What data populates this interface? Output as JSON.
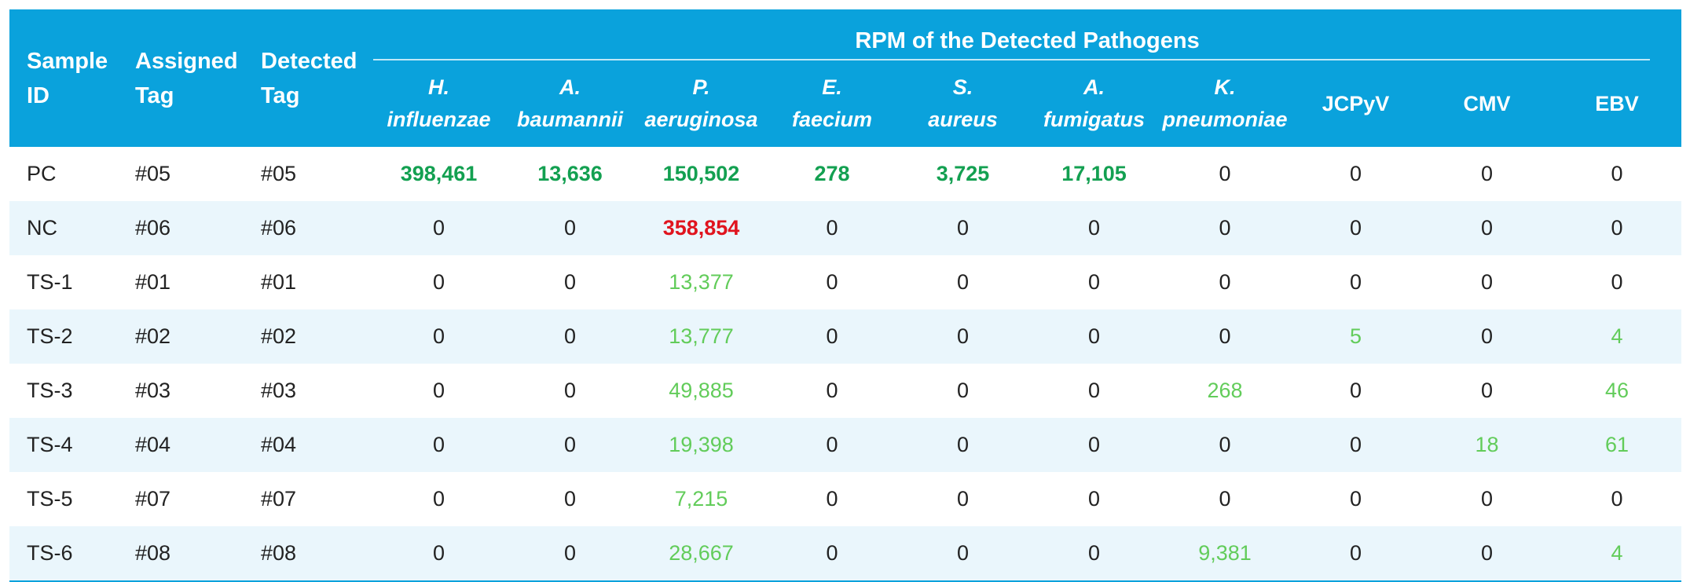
{
  "header": {
    "sample_id": "Sample ID",
    "assigned_tag": "Assigned Tag",
    "detected_tag": "Detected Tag",
    "group_title": "RPM of the Detected Pathogens",
    "pathogens": [
      {
        "line1": "H.",
        "line2": "influenzae",
        "italic": true
      },
      {
        "line1": "A.",
        "line2": "baumannii",
        "italic": true
      },
      {
        "line1": "P.",
        "line2": "aeruginosa",
        "italic": true
      },
      {
        "line1": "E.",
        "line2": "faecium",
        "italic": true
      },
      {
        "line1": "S.",
        "line2": "aureus",
        "italic": true
      },
      {
        "line1": "A.",
        "line2": "fumigatus",
        "italic": true
      },
      {
        "line1": "K.",
        "line2": "pneumoniae",
        "italic": true
      },
      {
        "line1": "JCPyV",
        "line2": "",
        "italic": false
      },
      {
        "line1": "CMV",
        "line2": "",
        "italic": false
      },
      {
        "line1": "EBV",
        "line2": "",
        "italic": false
      }
    ]
  },
  "colors": {
    "header_bg": "#0aa2dc",
    "alt_row_bg": "#eaf6fc",
    "positive_control": "#13a051",
    "negative_alert": "#e0141e",
    "detected": "#62cc5a"
  },
  "rows": [
    {
      "id": "PC",
      "assigned": "#05",
      "detected": "#05",
      "values": [
        {
          "v": "398,461",
          "s": "pos-strong"
        },
        {
          "v": "13,636",
          "s": "pos-strong"
        },
        {
          "v": "150,502",
          "s": "pos-strong"
        },
        {
          "v": "278",
          "s": "pos-strong"
        },
        {
          "v": "3,725",
          "s": "pos-strong"
        },
        {
          "v": "17,105",
          "s": "pos-strong"
        },
        {
          "v": "0",
          "s": ""
        },
        {
          "v": "0",
          "s": ""
        },
        {
          "v": "0",
          "s": ""
        },
        {
          "v": "0",
          "s": ""
        }
      ]
    },
    {
      "id": "NC",
      "assigned": "#06",
      "detected": "#06",
      "values": [
        {
          "v": "0",
          "s": ""
        },
        {
          "v": "0",
          "s": ""
        },
        {
          "v": "358,854",
          "s": "neg-alert"
        },
        {
          "v": "0",
          "s": ""
        },
        {
          "v": "0",
          "s": ""
        },
        {
          "v": "0",
          "s": ""
        },
        {
          "v": "0",
          "s": ""
        },
        {
          "v": "0",
          "s": ""
        },
        {
          "v": "0",
          "s": ""
        },
        {
          "v": "0",
          "s": ""
        }
      ]
    },
    {
      "id": "TS-1",
      "assigned": "#01",
      "detected": "#01",
      "values": [
        {
          "v": "0",
          "s": ""
        },
        {
          "v": "0",
          "s": ""
        },
        {
          "v": "13,377",
          "s": "pos-light"
        },
        {
          "v": "0",
          "s": ""
        },
        {
          "v": "0",
          "s": ""
        },
        {
          "v": "0",
          "s": ""
        },
        {
          "v": "0",
          "s": ""
        },
        {
          "v": "0",
          "s": ""
        },
        {
          "v": "0",
          "s": ""
        },
        {
          "v": "0",
          "s": ""
        }
      ]
    },
    {
      "id": "TS-2",
      "assigned": "#02",
      "detected": "#02",
      "values": [
        {
          "v": "0",
          "s": ""
        },
        {
          "v": "0",
          "s": ""
        },
        {
          "v": "13,777",
          "s": "pos-light"
        },
        {
          "v": "0",
          "s": ""
        },
        {
          "v": "0",
          "s": ""
        },
        {
          "v": "0",
          "s": ""
        },
        {
          "v": "0",
          "s": ""
        },
        {
          "v": "5",
          "s": "pos-light"
        },
        {
          "v": "0",
          "s": ""
        },
        {
          "v": "4",
          "s": "pos-light"
        }
      ]
    },
    {
      "id": "TS-3",
      "assigned": "#03",
      "detected": "#03",
      "values": [
        {
          "v": "0",
          "s": ""
        },
        {
          "v": "0",
          "s": ""
        },
        {
          "v": "49,885",
          "s": "pos-light"
        },
        {
          "v": "0",
          "s": ""
        },
        {
          "v": "0",
          "s": ""
        },
        {
          "v": "0",
          "s": ""
        },
        {
          "v": "268",
          "s": "pos-light"
        },
        {
          "v": "0",
          "s": ""
        },
        {
          "v": "0",
          "s": ""
        },
        {
          "v": "46",
          "s": "pos-light"
        }
      ]
    },
    {
      "id": "TS-4",
      "assigned": "#04",
      "detected": "#04",
      "values": [
        {
          "v": "0",
          "s": ""
        },
        {
          "v": "0",
          "s": ""
        },
        {
          "v": "19,398",
          "s": "pos-light"
        },
        {
          "v": "0",
          "s": ""
        },
        {
          "v": "0",
          "s": ""
        },
        {
          "v": "0",
          "s": ""
        },
        {
          "v": "0",
          "s": ""
        },
        {
          "v": "0",
          "s": ""
        },
        {
          "v": "18",
          "s": "pos-light"
        },
        {
          "v": "61",
          "s": "pos-light"
        }
      ]
    },
    {
      "id": "TS-5",
      "assigned": "#07",
      "detected": "#07",
      "values": [
        {
          "v": "0",
          "s": ""
        },
        {
          "v": "0",
          "s": ""
        },
        {
          "v": "7,215",
          "s": "pos-light"
        },
        {
          "v": "0",
          "s": ""
        },
        {
          "v": "0",
          "s": ""
        },
        {
          "v": "0",
          "s": ""
        },
        {
          "v": "0",
          "s": ""
        },
        {
          "v": "0",
          "s": ""
        },
        {
          "v": "0",
          "s": ""
        },
        {
          "v": "0",
          "s": ""
        }
      ]
    },
    {
      "id": "TS-6",
      "assigned": "#08",
      "detected": "#08",
      "values": [
        {
          "v": "0",
          "s": ""
        },
        {
          "v": "0",
          "s": ""
        },
        {
          "v": "28,667",
          "s": "pos-light"
        },
        {
          "v": "0",
          "s": ""
        },
        {
          "v": "0",
          "s": ""
        },
        {
          "v": "0",
          "s": ""
        },
        {
          "v": "9,381",
          "s": "pos-light"
        },
        {
          "v": "0",
          "s": ""
        },
        {
          "v": "0",
          "s": ""
        },
        {
          "v": "4",
          "s": "pos-light"
        }
      ]
    }
  ]
}
